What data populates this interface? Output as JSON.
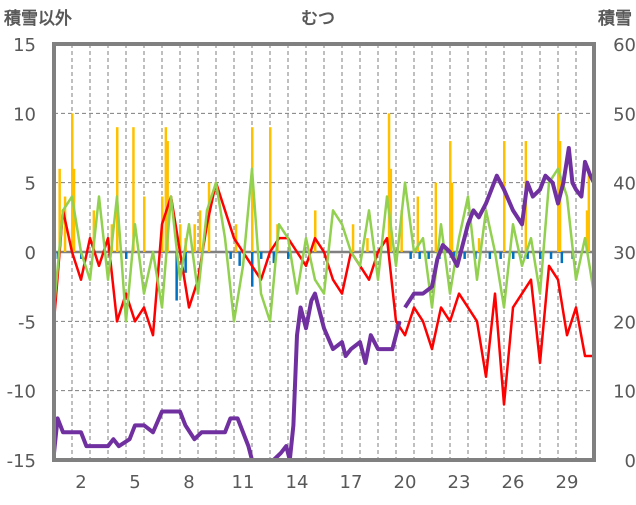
{
  "chart_data": {
    "type": "line",
    "title": "むつ",
    "ylabel_left": "積雪以外",
    "ylabel_right": "積雪",
    "ylim_left": [
      -15,
      15
    ],
    "ylim_right": [
      0,
      60
    ],
    "xlim_days": [
      0,
      30
    ],
    "grid": true,
    "x_tick_labels": [
      "2",
      "5",
      "8",
      "11",
      "14",
      "17",
      "20",
      "23",
      "26",
      "29"
    ],
    "y_left_ticks": [
      "15",
      "10",
      "5",
      "0",
      "-5",
      "-10",
      "-15"
    ],
    "y_right_ticks": [
      "60",
      "50",
      "40",
      "30",
      "20",
      "10",
      "0"
    ],
    "colors": {
      "snow": "#7030a0",
      "red": "#ff0000",
      "green": "#92d050",
      "yellow": "#ffc000",
      "blue": "#0070c0",
      "frame": "#808080"
    },
    "series_half_day_step": 0.5,
    "red_series": [
      -5,
      3,
      0,
      -2,
      1,
      -1,
      1,
      -5,
      -3,
      -5,
      -4,
      -6,
      2,
      4,
      0,
      -4,
      -2,
      2,
      5,
      3,
      1,
      0,
      -1,
      -2,
      0,
      1,
      1,
      0,
      -1,
      1,
      0,
      -2,
      -3,
      0,
      -1,
      -2,
      0,
      1,
      -5,
      -6,
      -4,
      -5,
      -7,
      -4,
      -5,
      -3,
      -4,
      -5,
      -9,
      -3,
      -11,
      -4,
      -3,
      -2,
      -8,
      -1,
      -2,
      -6,
      -4,
      -7.5,
      -7.5
    ],
    "green_series": [
      -4,
      3,
      4,
      0,
      -2,
      4,
      -2,
      4,
      -5,
      2,
      -3,
      0,
      -4,
      4,
      -2,
      2,
      -3,
      3,
      5,
      1,
      -5,
      -1,
      6,
      -3,
      -5,
      2,
      1,
      -3,
      1,
      -2,
      -3,
      3,
      2,
      0,
      -1,
      3,
      -2,
      4,
      -1,
      5,
      0,
      1,
      -4,
      2,
      -3,
      1,
      4,
      -2,
      3,
      0,
      -4,
      2,
      -1,
      1,
      -3,
      5,
      6,
      4,
      -2,
      1,
      -3
    ],
    "snow_series": [
      [
        0,
        1
      ],
      [
        0.2,
        6
      ],
      [
        0.5,
        4
      ],
      [
        1,
        4
      ],
      [
        1.5,
        4
      ],
      [
        1.8,
        2
      ],
      [
        3,
        2
      ],
      [
        3.3,
        3
      ],
      [
        3.6,
        2
      ],
      [
        4.2,
        3
      ],
      [
        4.5,
        5
      ],
      [
        5,
        5
      ],
      [
        5.5,
        4
      ],
      [
        6,
        7
      ],
      [
        7,
        7
      ],
      [
        7.3,
        5
      ],
      [
        7.8,
        3
      ],
      [
        8.2,
        4
      ],
      [
        9.5,
        4
      ],
      [
        9.8,
        6
      ],
      [
        10.2,
        6
      ],
      [
        10.5,
        4
      ],
      [
        10.8,
        2
      ],
      [
        11,
        0
      ],
      [
        12.2,
        0
      ],
      [
        12.6,
        1
      ],
      [
        12.9,
        2
      ],
      [
        13.1,
        0
      ],
      [
        13.3,
        5
      ],
      [
        13.5,
        18
      ],
      [
        13.7,
        22
      ],
      [
        14,
        19
      ],
      [
        14.3,
        23
      ],
      [
        14.5,
        24
      ],
      [
        14.8,
        21
      ],
      [
        15,
        19
      ],
      [
        15.5,
        16
      ],
      [
        16,
        17
      ],
      [
        16.2,
        15
      ],
      [
        16.5,
        16
      ],
      [
        17,
        17
      ],
      [
        17.3,
        14
      ],
      [
        17.6,
        18
      ],
      [
        18,
        16
      ],
      [
        18.8,
        16
      ],
      [
        19.2,
        20
      ],
      null,
      [
        19.5,
        22
      ],
      [
        20,
        24
      ],
      [
        20.5,
        24
      ],
      [
        21,
        25
      ],
      [
        21.3,
        29
      ],
      [
        21.6,
        31
      ],
      [
        22,
        30
      ],
      [
        22.4,
        28
      ],
      [
        22.7,
        31
      ],
      [
        23,
        34
      ],
      [
        23.3,
        36
      ],
      [
        23.6,
        35
      ],
      [
        24,
        37
      ],
      [
        24.3,
        39
      ],
      [
        24.6,
        41
      ],
      [
        25,
        39
      ],
      [
        25.5,
        36
      ],
      [
        26,
        34
      ],
      [
        26.3,
        40
      ],
      [
        26.6,
        38
      ],
      [
        27,
        39
      ],
      [
        27.3,
        41
      ],
      [
        27.7,
        40
      ],
      [
        28,
        37
      ],
      [
        28.3,
        40
      ],
      [
        28.6,
        45
      ],
      [
        28.8,
        40
      ],
      [
        29,
        39
      ],
      [
        29.3,
        38
      ],
      [
        29.5,
        43
      ],
      [
        29.8,
        41
      ],
      [
        30,
        40
      ]
    ],
    "yellow_bars": [
      [
        0.3,
        6
      ],
      [
        0.6,
        4
      ],
      [
        1.0,
        10
      ],
      [
        1.1,
        6
      ],
      [
        2.2,
        3
      ],
      [
        3.2,
        2
      ],
      [
        3.5,
        9
      ],
      [
        4.4,
        9
      ],
      [
        5.0,
        4
      ],
      [
        6.0,
        4
      ],
      [
        6.2,
        9
      ],
      [
        6.3,
        8
      ],
      [
        7.0,
        2
      ],
      [
        7.3,
        1
      ],
      [
        7.8,
        2
      ],
      [
        8.1,
        3
      ],
      [
        8.6,
        5
      ],
      [
        10.1,
        2
      ],
      [
        11.0,
        9
      ],
      [
        12.0,
        9
      ],
      [
        12.4,
        2
      ],
      [
        14.5,
        3
      ],
      [
        16.6,
        2
      ],
      [
        17.4,
        1
      ],
      [
        18.6,
        10
      ],
      [
        18.7,
        6
      ],
      [
        19.3,
        3
      ],
      [
        20.2,
        4
      ],
      [
        21.2,
        5
      ],
      [
        22.0,
        8
      ],
      [
        22.1,
        5
      ],
      [
        23.6,
        1
      ],
      [
        25.0,
        8
      ],
      [
        26.2,
        8
      ],
      [
        28.0,
        10
      ],
      [
        28.1,
        8
      ],
      [
        29.6,
        3
      ],
      [
        29.7,
        6
      ]
    ],
    "blue_bars": [
      [
        0.2,
        -0.5
      ],
      [
        1.5,
        -0.5
      ],
      [
        4.0,
        -0.5
      ],
      [
        6.8,
        -3.5
      ],
      [
        7.3,
        -1.5
      ],
      [
        9.8,
        -0.5
      ],
      [
        10.3,
        -1
      ],
      [
        11.0,
        -2.5
      ],
      [
        11.5,
        -0.5
      ],
      [
        12.2,
        -0.8
      ],
      [
        13.0,
        -0.5
      ],
      [
        19.8,
        -0.5
      ],
      [
        20.3,
        -0.5
      ],
      [
        20.8,
        -0.5
      ],
      [
        21.4,
        -0.5
      ],
      [
        22.2,
        -0.5
      ],
      [
        22.8,
        -0.5
      ],
      [
        23.4,
        -0.5
      ],
      [
        24.2,
        -0.5
      ],
      [
        24.8,
        -0.5
      ],
      [
        25.5,
        -0.5
      ],
      [
        26.3,
        -0.5
      ],
      [
        27.0,
        -0.5
      ],
      [
        27.6,
        -0.5
      ],
      [
        28.2,
        -0.8
      ],
      [
        28.8,
        -0.5
      ]
    ]
  }
}
